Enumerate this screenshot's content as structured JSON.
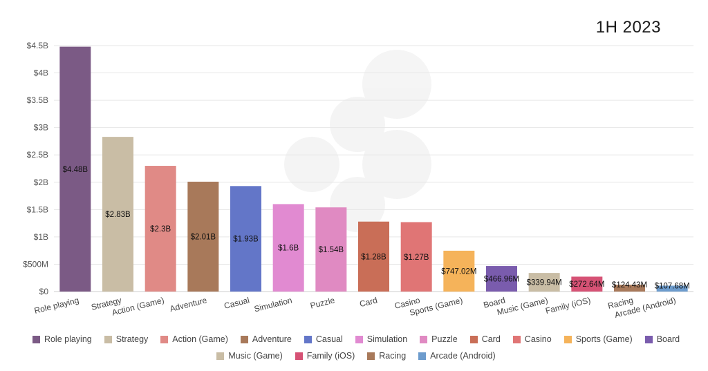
{
  "header": {
    "period": "1H 2023"
  },
  "chart_data": {
    "type": "bar",
    "title": "",
    "xlabel": "",
    "ylabel": "",
    "ylim": [
      0,
      4.5
    ],
    "y_ticks": [
      0,
      0.5,
      1,
      1.5,
      2,
      2.5,
      3,
      3.5,
      4,
      4.5
    ],
    "y_tick_labels": [
      "$0",
      "$500M",
      "$1B",
      "$1.5B",
      "$2B",
      "$2.5B",
      "$3B",
      "$3.5B",
      "$4B",
      "$4.5B"
    ],
    "grid": true,
    "legend_position": "bottom",
    "value_unit": "billion USD",
    "categories": [
      "Role playing",
      "Strategy",
      "Action (Game)",
      "Adventure",
      "Casual",
      "Simulation",
      "Puzzle",
      "Card",
      "Casino",
      "Sports (Game)",
      "Board",
      "Music (Game)",
      "Family (iOS)",
      "Racing",
      "Arcade (Android)"
    ],
    "values": [
      4.48,
      2.83,
      2.3,
      2.01,
      1.93,
      1.6,
      1.54,
      1.28,
      1.27,
      0.74702,
      0.46696,
      0.33994,
      0.27264,
      0.12443,
      0.10768
    ],
    "data_labels": [
      "$4.48B",
      "$2.83B",
      "$2.3B",
      "$2.01B",
      "$1.93B",
      "$1.6B",
      "$1.54B",
      "$1.28B",
      "$1.27B",
      "$747.02M",
      "$466.96M",
      "$339.94M",
      "$272.64M",
      "$124.43M",
      "$107.68M"
    ],
    "colors": [
      "#7b5a85",
      "#c9bda5",
      "#e08a86",
      "#a8795a",
      "#6376c8",
      "#e18ad1",
      "#e08ac2",
      "#c96e57",
      "#e07575",
      "#f5b35a",
      "#7a5cad",
      "#c9bda5",
      "#d65275",
      "#a8795a",
      "#6d9ccd"
    ]
  }
}
